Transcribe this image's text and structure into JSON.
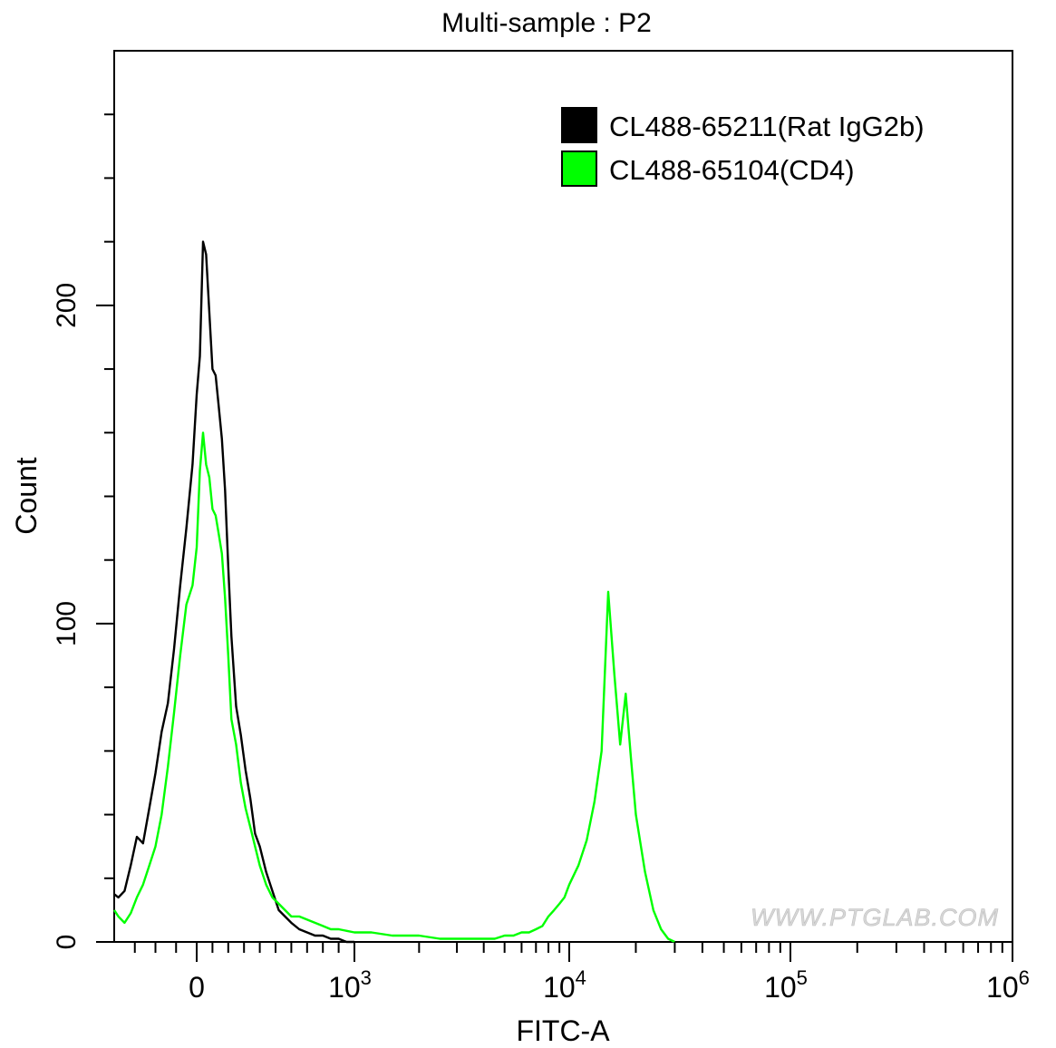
{
  "chart_data": {
    "type": "line",
    "title": "Multi-sample : P2",
    "xlabel": "FITC-A",
    "ylabel": "Count",
    "x_scale": "biexponential",
    "xlim": [
      -400,
      1000000
    ],
    "ylim": [
      0,
      280
    ],
    "x_ticks": [
      {
        "value": 0,
        "base": "0",
        "exp": ""
      },
      {
        "value": 1000,
        "base": "10",
        "exp": "3"
      },
      {
        "value": 10000,
        "base": "10",
        "exp": "4"
      },
      {
        "value": 100000,
        "base": "10",
        "exp": "5"
      },
      {
        "value": 1000000,
        "base": "10",
        "exp": "6"
      }
    ],
    "y_ticks": [
      {
        "value": 0,
        "label": "0"
      },
      {
        "value": 100,
        "label": "100"
      },
      {
        "value": 200,
        "label": "200"
      }
    ],
    "legend_position": "top-right",
    "grid": false,
    "watermark": "WWW.PTGLAB.COM",
    "series": [
      {
        "name": "CL488-65211(Rat IgG2b)",
        "color": "#000000",
        "x": [
          -400,
          -380,
          -350,
          -320,
          -290,
          -260,
          -230,
          -200,
          -170,
          -140,
          -110,
          -80,
          -50,
          -20,
          0,
          20,
          40,
          60,
          80,
          100,
          120,
          140,
          160,
          180,
          200,
          220,
          250,
          280,
          310,
          340,
          370,
          400,
          440,
          480,
          520,
          560,
          600,
          650,
          700,
          750,
          800,
          850,
          900,
          950,
          1000
        ],
        "values": [
          15,
          14,
          16,
          24,
          33,
          31,
          42,
          53,
          66,
          75,
          92,
          112,
          130,
          150,
          172,
          184,
          220,
          216,
          198,
          180,
          178,
          168,
          158,
          142,
          118,
          96,
          74,
          65,
          54,
          45,
          34,
          30,
          22,
          16,
          10,
          8,
          6,
          4,
          3,
          2,
          2,
          1,
          1,
          0,
          0
        ]
      },
      {
        "name": "CL488-65104(CD4)",
        "color": "#00ff00",
        "x": [
          -400,
          -380,
          -350,
          -320,
          -290,
          -260,
          -230,
          -200,
          -170,
          -140,
          -110,
          -80,
          -50,
          -20,
          0,
          20,
          40,
          60,
          80,
          100,
          120,
          140,
          160,
          180,
          200,
          220,
          250,
          280,
          310,
          340,
          370,
          400,
          440,
          480,
          520,
          560,
          600,
          650,
          700,
          750,
          800,
          850,
          900,
          1000,
          1200,
          1500,
          2000,
          2500,
          3000,
          3500,
          4000,
          4500,
          5000,
          5500,
          6000,
          6500,
          7000,
          7500,
          8000,
          8500,
          9000,
          9500,
          10000,
          11000,
          12000,
          13000,
          14000,
          15000,
          16000,
          17000,
          18000,
          19000,
          20000,
          22000,
          24000,
          26000,
          28000,
          30000
        ],
        "values": [
          10,
          8,
          6,
          9,
          14,
          18,
          24,
          30,
          40,
          55,
          72,
          90,
          106,
          112,
          124,
          148,
          160,
          150,
          146,
          136,
          134,
          128,
          122,
          108,
          90,
          70,
          62,
          50,
          42,
          36,
          30,
          24,
          18,
          14,
          12,
          10,
          8,
          8,
          7,
          6,
          5,
          4,
          4,
          3,
          3,
          2,
          2,
          1,
          1,
          1,
          1,
          1,
          2,
          2,
          3,
          3,
          4,
          5,
          8,
          10,
          12,
          14,
          18,
          24,
          32,
          44,
          60,
          110,
          84,
          62,
          78,
          58,
          40,
          22,
          10,
          4,
          1,
          0
        ]
      }
    ]
  }
}
